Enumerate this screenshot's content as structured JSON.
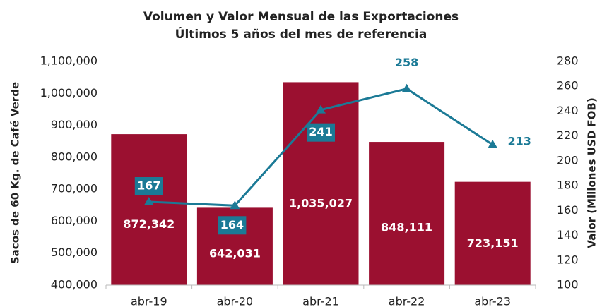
{
  "chart_data": {
    "type": "bar",
    "title": "Volumen y Valor Mensual de las Exportaciones",
    "subtitle": "Últimos 5 años del mes de referencia",
    "y_label": "Sacos de 60 Kg. de Café Verde",
    "y2_label": "Valor (Millones USD FOB)",
    "categories": [
      "abr-19",
      "abr-20",
      "abr-21",
      "abr-22",
      "abr-23"
    ],
    "series": [
      {
        "type": "bar",
        "color": "#9b1030",
        "values": [
          872342,
          642031,
          1035027,
          848111,
          723151
        ],
        "value_labels": [
          "872,342",
          "642,031",
          "1,035,027",
          "848,111",
          "723,151"
        ]
      },
      {
        "type": "line",
        "axis": "y2",
        "color": "#1b7a96",
        "values": [
          167,
          164,
          241,
          258,
          213
        ]
      }
    ],
    "ylim": [
      400000,
      1100000
    ],
    "yticks": [
      {
        "value": 400000,
        "label": "400,000"
      },
      {
        "value": 500000,
        "label": "500,000"
      },
      {
        "value": 600000,
        "label": "600,000"
      },
      {
        "value": 700000,
        "label": "700,000"
      },
      {
        "value": 800000,
        "label": "800,000"
      },
      {
        "value": 900000,
        "label": "900,000"
      },
      {
        "value": 1000000,
        "label": "1,000,000"
      },
      {
        "value": 1100000,
        "label": "1,100,000"
      }
    ],
    "y2lim": [
      100,
      280
    ],
    "y2ticks": [
      100,
      120,
      140,
      160,
      180,
      200,
      220,
      240,
      260,
      280
    ]
  }
}
